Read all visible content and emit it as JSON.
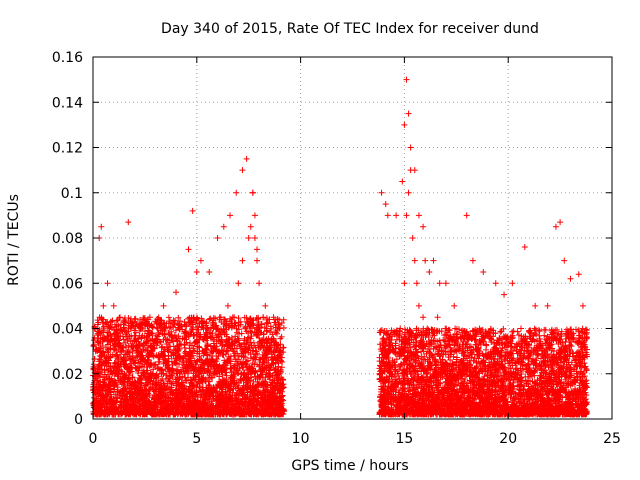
{
  "chart_data": {
    "type": "scatter",
    "title": "Day 340 of 2015, Rate Of TEC Index for receiver dund",
    "xlabel": "GPS time / hours",
    "ylabel": "ROTI / TECUs",
    "xlim": [
      0,
      25
    ],
    "ylim": [
      0,
      0.16
    ],
    "xticks": [
      0,
      5,
      10,
      15,
      20,
      25
    ],
    "yticks": [
      0,
      0.02,
      0.04,
      0.06,
      0.08,
      0.1,
      0.12,
      0.14,
      0.16
    ],
    "grid": true,
    "marker": "+",
    "color": "#ff0000",
    "series": [
      {
        "x": [
          0.1,
          0.2,
          0.3,
          0.4,
          0.5,
          0.6,
          0.8,
          1.0,
          1.2,
          1.5,
          1.7,
          2.0,
          2.3,
          2.6,
          3.0,
          3.3,
          3.5,
          3.8,
          4.1,
          4.4,
          4.7,
          4.9,
          5.0,
          5.1,
          5.3,
          5.5,
          5.8,
          6.1,
          6.3,
          6.5,
          6.8,
          7.0,
          7.2,
          7.5,
          7.6,
          7.7,
          7.8,
          7.9,
          8.0,
          8.2,
          8.5,
          8.8,
          9.0,
          9.1,
          13.8,
          13.9,
          14.0,
          14.1,
          14.3,
          14.5,
          14.8,
          15.0,
          15.1,
          15.2,
          15.3,
          15.4,
          15.5,
          15.6,
          15.7,
          15.9,
          16.1,
          16.3,
          16.6,
          16.9,
          17.2,
          17.5,
          17.8,
          18.1,
          18.4,
          18.6,
          18.9,
          19.2,
          19.5,
          19.8,
          20.1,
          20.4,
          20.7,
          21.0,
          21.4,
          21.8,
          22.2,
          22.4,
          22.6,
          22.9,
          23.2,
          23.5,
          23.7,
          0.3,
          0.4,
          0.5,
          0.7,
          1.0,
          1.7,
          1.3,
          2.1,
          3.4,
          4.0,
          4.6,
          4.8,
          5.0,
          5.2,
          5.6,
          6.0,
          6.3,
          6.6,
          6.9,
          7.2,
          7.4,
          7.7,
          7.8,
          7.9,
          8.3,
          8.7,
          9.0,
          13.9,
          14.1,
          14.2,
          14.6,
          14.9,
          15.0,
          15.1,
          15.2,
          15.3,
          15.5,
          15.7,
          15.9,
          16.0,
          16.2,
          16.4,
          16.7,
          17.0,
          17.4,
          18.0,
          18.3,
          18.8,
          19.4,
          19.8,
          20.2,
          20.8,
          21.3,
          21.9,
          22.3,
          22.5,
          22.7,
          23.0,
          23.4,
          23.6
        ],
        "y": [
          0.012,
          0.03,
          0.02,
          0.014,
          0.01,
          0.025,
          0.018,
          0.016,
          0.012,
          0.02,
          0.03,
          0.015,
          0.012,
          0.01,
          0.018,
          0.02,
          0.025,
          0.022,
          0.03,
          0.02,
          0.028,
          0.03,
          0.035,
          0.032,
          0.03,
          0.028,
          0.04,
          0.045,
          0.042,
          0.05,
          0.045,
          0.06,
          0.07,
          0.08,
          0.085,
          0.1,
          0.09,
          0.075,
          0.06,
          0.045,
          0.03,
          0.025,
          0.02,
          0.015,
          0.02,
          0.03,
          0.025,
          0.028,
          0.02,
          0.025,
          0.04,
          0.06,
          0.09,
          0.1,
          0.11,
          0.08,
          0.07,
          0.06,
          0.05,
          0.045,
          0.04,
          0.035,
          0.045,
          0.03,
          0.035,
          0.025,
          0.03,
          0.028,
          0.035,
          0.03,
          0.025,
          0.035,
          0.03,
          0.028,
          0.035,
          0.03,
          0.025,
          0.022,
          0.03,
          0.028,
          0.03,
          0.025,
          0.02,
          0.025,
          0.022,
          0.02,
          0.015,
          0.08,
          0.085,
          0.05,
          0.06,
          0.05,
          0.087,
          0.045,
          0.042,
          0.05,
          0.056,
          0.075,
          0.092,
          0.065,
          0.07,
          0.065,
          0.08,
          0.085,
          0.09,
          0.1,
          0.11,
          0.115,
          0.1,
          0.08,
          0.07,
          0.05,
          0.045,
          0.04,
          0.1,
          0.095,
          0.09,
          0.09,
          0.105,
          0.13,
          0.15,
          0.135,
          0.12,
          0.11,
          0.09,
          0.085,
          0.07,
          0.065,
          0.07,
          0.06,
          0.06,
          0.05,
          0.09,
          0.07,
          0.065,
          0.06,
          0.055,
          0.06,
          0.076,
          0.05,
          0.05,
          0.085,
          0.087,
          0.07,
          0.062,
          0.064,
          0.05
        ]
      }
    ],
    "dense_bands": [
      {
        "x_from": 0.0,
        "x_to": 9.2,
        "y_from": 0.002,
        "y_to": 0.045
      },
      {
        "x_from": 13.8,
        "x_to": 23.8,
        "y_from": 0.002,
        "y_to": 0.04
      }
    ]
  }
}
